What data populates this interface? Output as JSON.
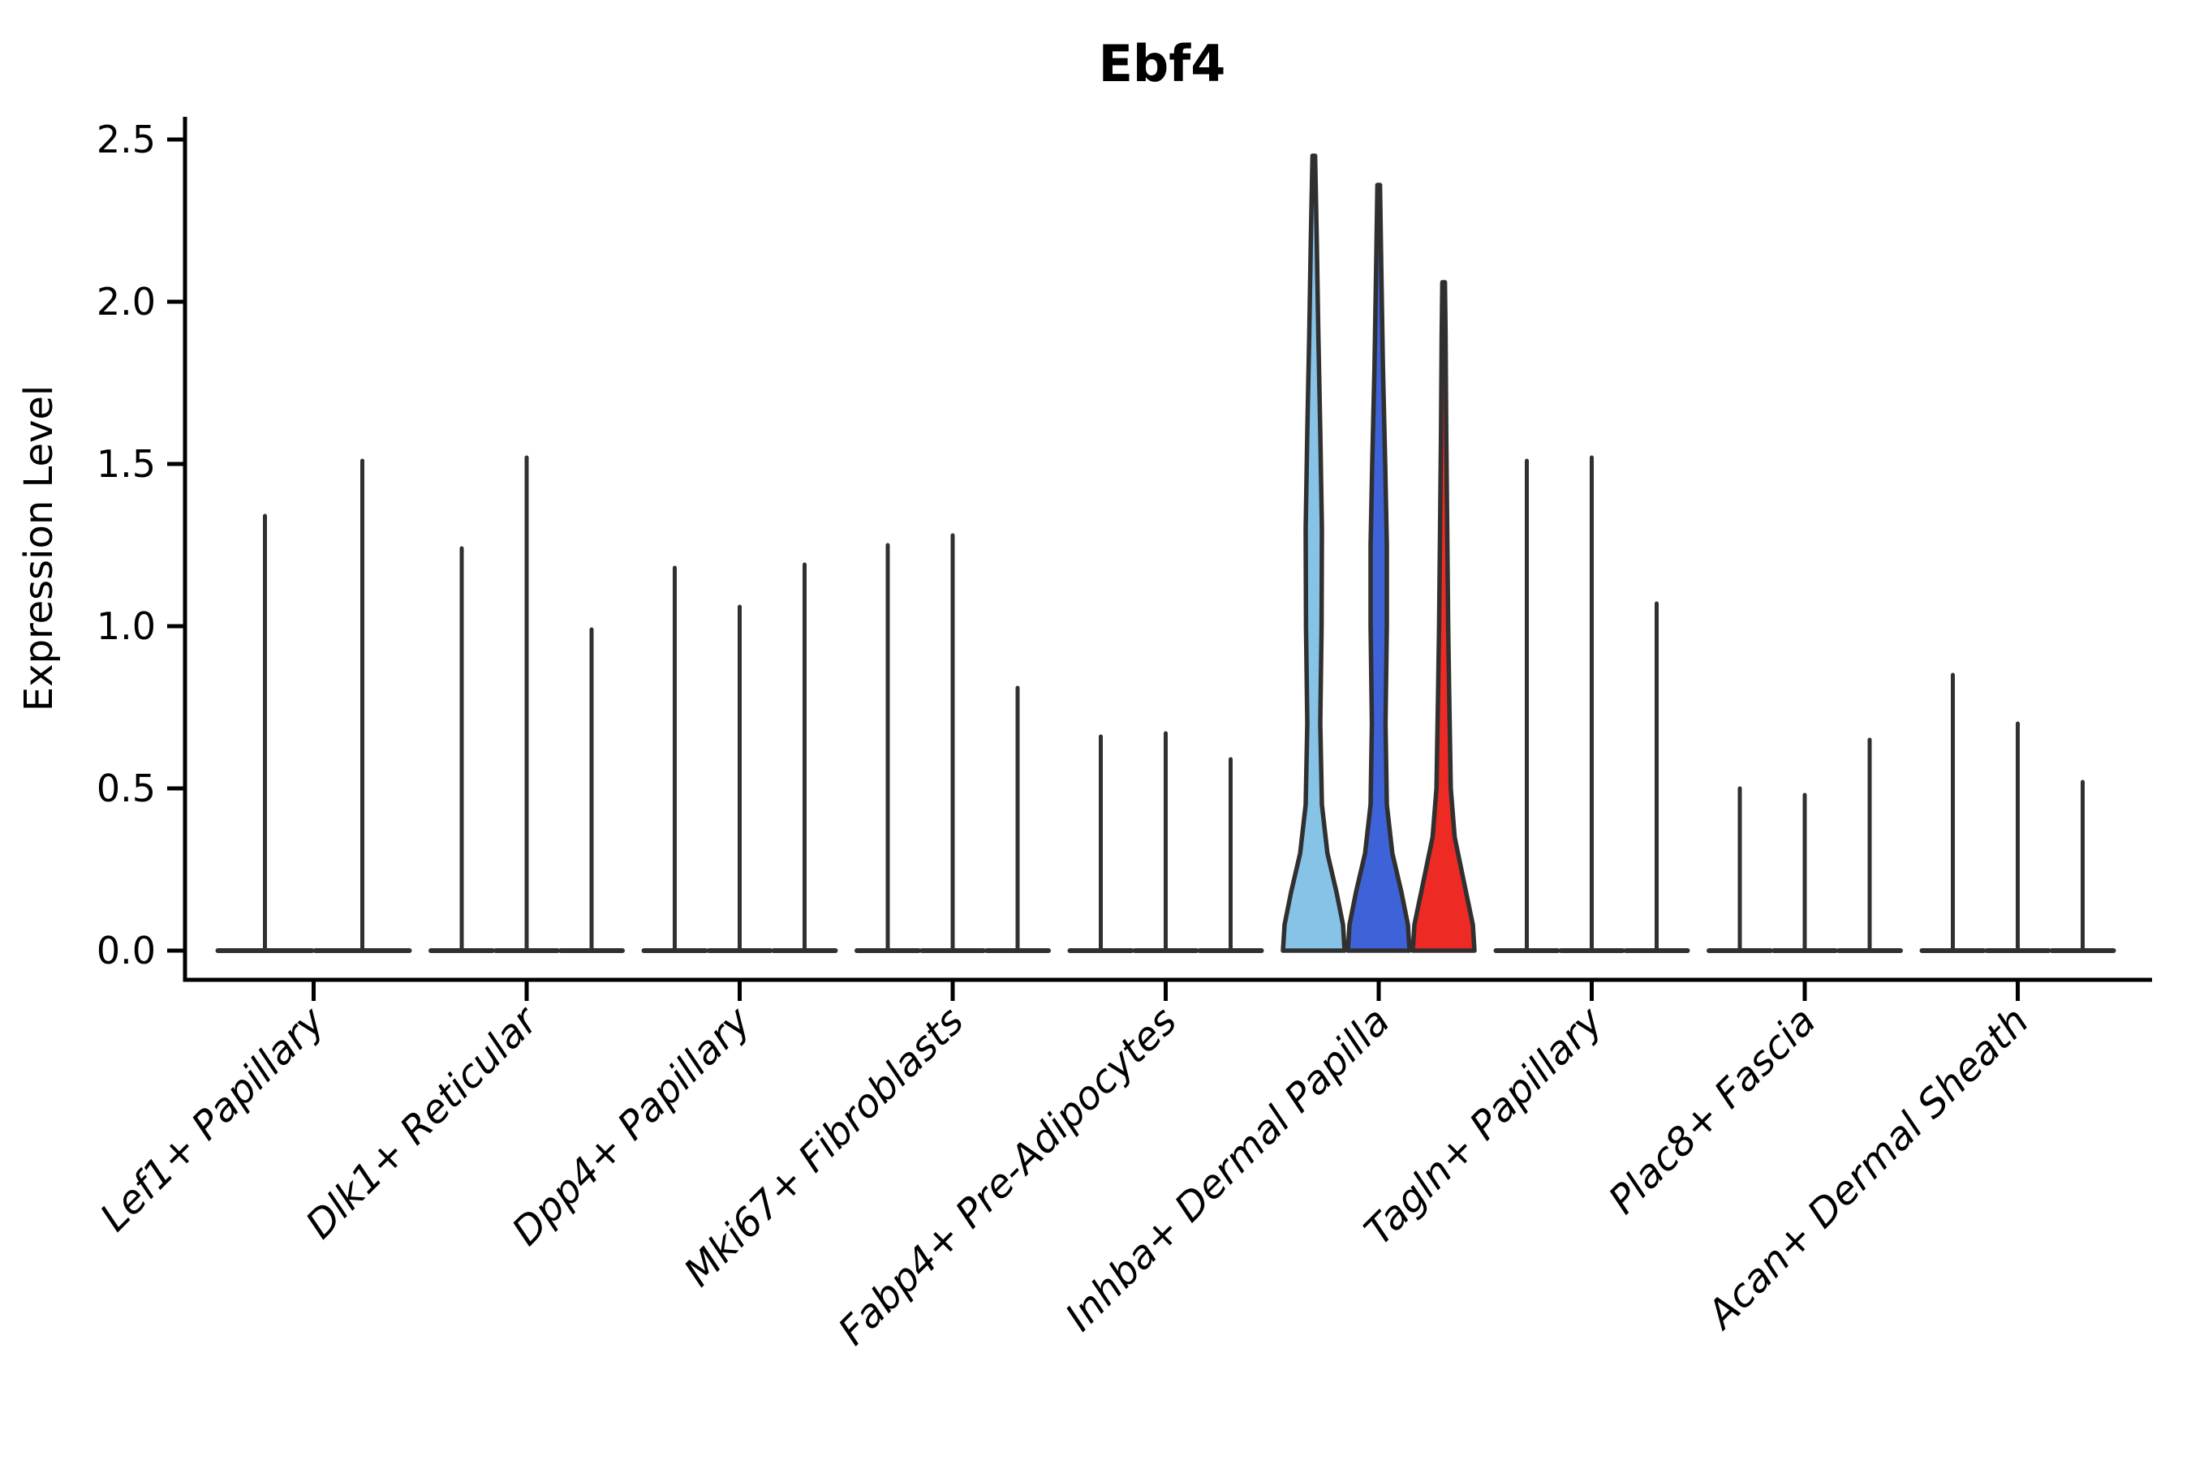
{
  "chart_data": {
    "type": "violin",
    "title": "Ebf4",
    "ylabel": "Expression Level",
    "xlabel": "",
    "ylim": [
      0,
      2.5
    ],
    "yticks": [
      0.0,
      0.5,
      1.0,
      1.5,
      2.0,
      2.5
    ],
    "ytick_labels": [
      "0.0",
      "0.5",
      "1.0",
      "1.5",
      "2.0",
      "2.5"
    ],
    "grid": false,
    "legend": "none",
    "categories": [
      "Lef1+ Papillary",
      "Dlk1+ Reticular",
      "Dpp4+ Papillary",
      "Mki67+ Fibroblasts",
      "Fabp4+ Pre-Adipocytes",
      "Inhba+ Dermal Papilla",
      "Tagln+ Papillary",
      "Plac8+ Fascia",
      "Acan+ Dermal Sheath"
    ],
    "groups": [
      {
        "label": "Lef1+ Papillary",
        "violins": [
          {
            "max": 1.34
          },
          {
            "max": 1.51
          }
        ]
      },
      {
        "label": "Dlk1+ Reticular",
        "violins": [
          {
            "max": 1.24
          },
          {
            "max": 1.52
          },
          {
            "max": 0.99
          }
        ]
      },
      {
        "label": "Dpp4+ Papillary",
        "violins": [
          {
            "max": 1.18
          },
          {
            "max": 1.06
          },
          {
            "max": 1.19
          }
        ]
      },
      {
        "label": "Mki67+ Fibroblasts",
        "violins": [
          {
            "max": 1.25
          },
          {
            "max": 1.28
          },
          {
            "max": 0.81
          }
        ]
      },
      {
        "label": "Fabp4+ Pre-Adipocytes",
        "violins": [
          {
            "max": 0.66
          },
          {
            "max": 0.67
          },
          {
            "max": 0.59
          }
        ]
      },
      {
        "label": "Inhba+ Dermal Papilla",
        "violins": [
          {
            "max": 2.45,
            "fill": "#87C3E6",
            "profile": [
              [
                0,
                0.95
              ],
              [
                0.08,
                0.9
              ],
              [
                0.18,
                0.7
              ],
              [
                0.3,
                0.42
              ],
              [
                0.45,
                0.25
              ],
              [
                0.7,
                0.2
              ],
              [
                1.0,
                0.24
              ],
              [
                1.3,
                0.25
              ],
              [
                1.6,
                0.2
              ],
              [
                1.9,
                0.14
              ],
              [
                2.2,
                0.09
              ],
              [
                2.45,
                0.04
              ]
            ]
          },
          {
            "max": 2.36,
            "fill": "#3E63D8",
            "profile": [
              [
                0,
                0.95
              ],
              [
                0.08,
                0.9
              ],
              [
                0.18,
                0.7
              ],
              [
                0.3,
                0.42
              ],
              [
                0.45,
                0.25
              ],
              [
                0.7,
                0.21
              ],
              [
                1.0,
                0.25
              ],
              [
                1.25,
                0.25
              ],
              [
                1.5,
                0.2
              ],
              [
                1.8,
                0.13
              ],
              [
                2.1,
                0.08
              ],
              [
                2.36,
                0.04
              ]
            ]
          },
          {
            "max": 2.06,
            "fill": "#EE2A25",
            "profile": [
              [
                0,
                0.95
              ],
              [
                0.08,
                0.9
              ],
              [
                0.2,
                0.65
              ],
              [
                0.35,
                0.34
              ],
              [
                0.5,
                0.22
              ],
              [
                0.8,
                0.17
              ],
              [
                1.0,
                0.14
              ],
              [
                1.3,
                0.11
              ],
              [
                1.6,
                0.08
              ],
              [
                1.9,
                0.06
              ],
              [
                2.06,
                0.04
              ]
            ]
          }
        ]
      },
      {
        "label": "Tagln+ Papillary",
        "violins": [
          {
            "max": 1.51
          },
          {
            "max": 1.52
          },
          {
            "max": 1.07
          }
        ]
      },
      {
        "label": "Plac8+ Fascia",
        "violins": [
          {
            "max": 0.5
          },
          {
            "max": 0.48
          },
          {
            "max": 0.65
          }
        ]
      },
      {
        "label": "Acan+ Dermal Sheath",
        "violins": [
          {
            "max": 0.85
          },
          {
            "max": 0.7
          },
          {
            "max": 0.52
          }
        ]
      }
    ],
    "colors": {
      "violin_stroke": "#303030",
      "axis": "#000000",
      "text": "#000000",
      "highlight_fills": [
        "#87C3E6",
        "#3E63D8",
        "#EE2A25"
      ],
      "background": "#ffffff"
    }
  }
}
